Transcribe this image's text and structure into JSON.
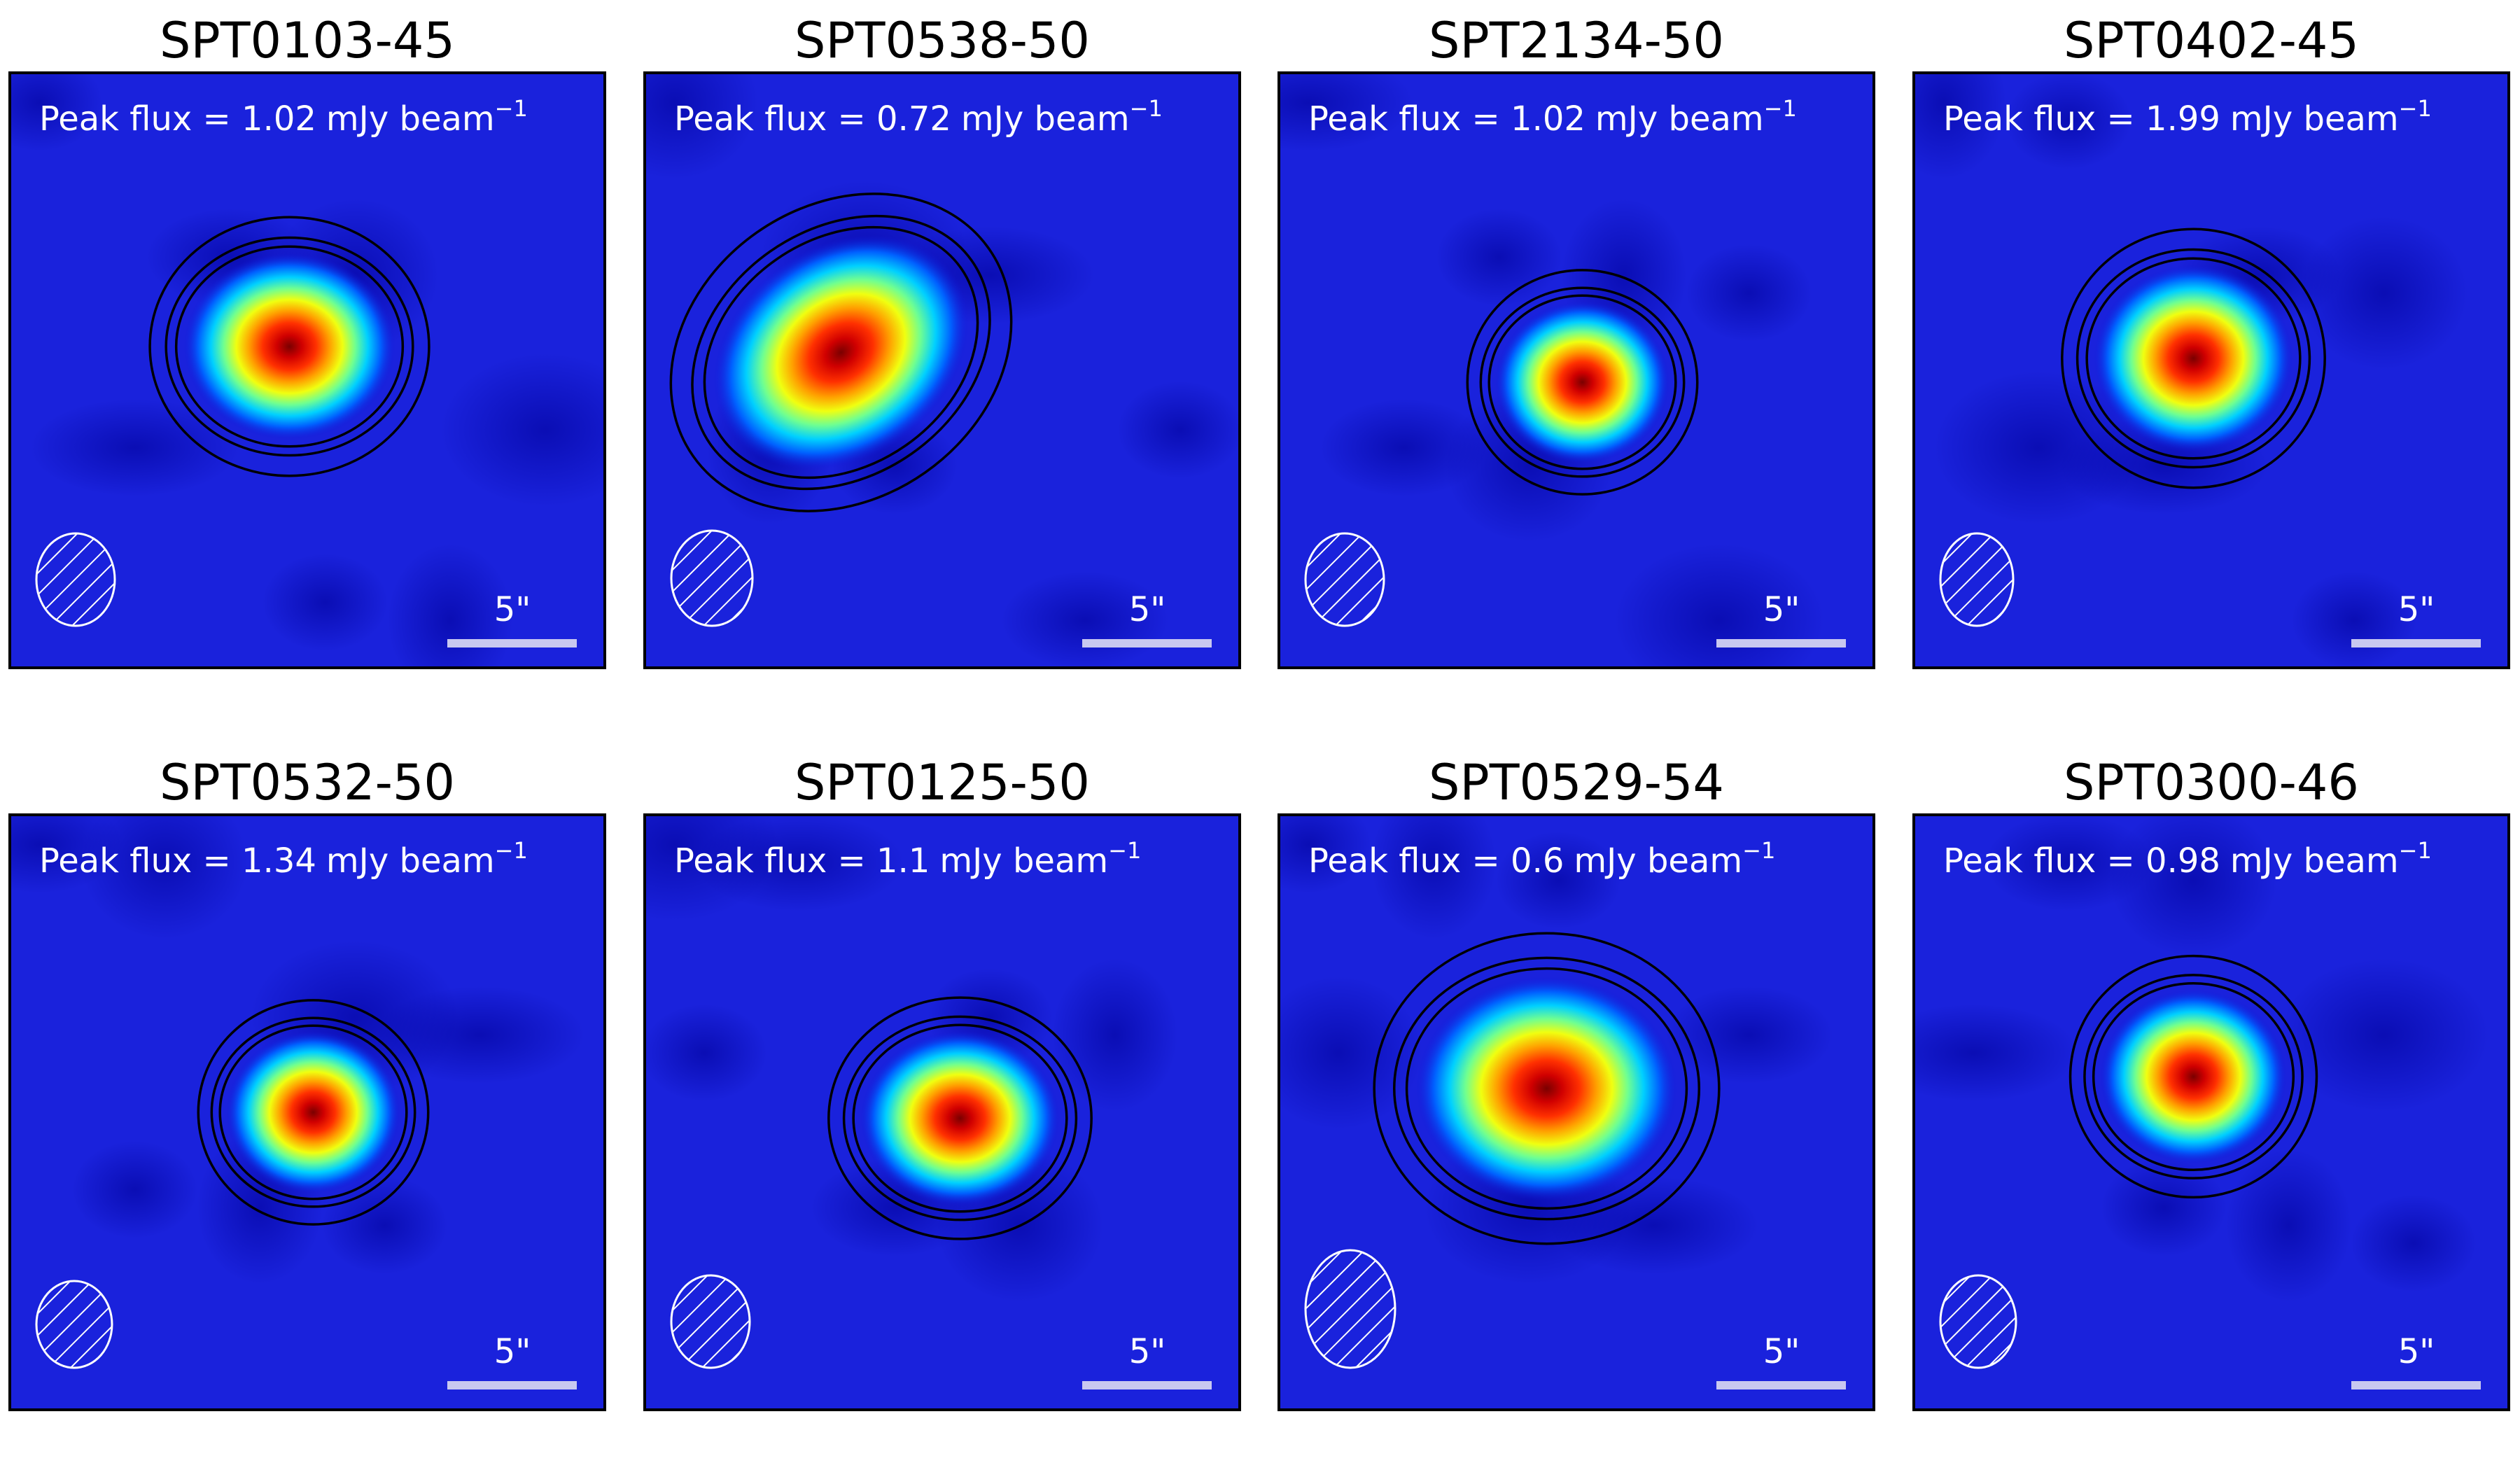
{
  "panels": [
    {
      "title": "SPT0103-45",
      "flux_prefix": "Peak flux = ",
      "flux": 1.02,
      "unit": "mJy beam",
      "exponent": "−1",
      "scale_label": "5\""
    },
    {
      "title": "SPT0538-50",
      "flux_prefix": "Peak flux = ",
      "flux": 0.72,
      "unit": "mJy beam",
      "exponent": "−1",
      "scale_label": "5\""
    },
    {
      "title": "SPT2134-50",
      "flux_prefix": "Peak flux = ",
      "flux": 1.02,
      "unit": "mJy beam",
      "exponent": "−1",
      "scale_label": "5\""
    },
    {
      "title": "SPT0402-45",
      "flux_prefix": "Peak flux = ",
      "flux": 1.99,
      "unit": "mJy beam",
      "exponent": "−1",
      "scale_label": "5\""
    },
    {
      "title": "SPT0532-50",
      "flux_prefix": "Peak flux = ",
      "flux": 1.34,
      "unit": "mJy beam",
      "exponent": "−1",
      "scale_label": "5\""
    },
    {
      "title": "SPT0125-50",
      "flux_prefix": "Peak flux = ",
      "flux": 1.1,
      "unit": "mJy beam",
      "exponent": "−1",
      "scale_label": "5\""
    },
    {
      "title": "SPT0529-54",
      "flux_prefix": "Peak flux = ",
      "flux": 0.6,
      "unit": "mJy beam",
      "exponent": "−1",
      "scale_label": "5\""
    },
    {
      "title": "SPT0300-46",
      "flux_prefix": "Peak flux = ",
      "flux": 0.98,
      "unit": "mJy beam",
      "exponent": "−1",
      "scale_label": "5\""
    }
  ]
}
